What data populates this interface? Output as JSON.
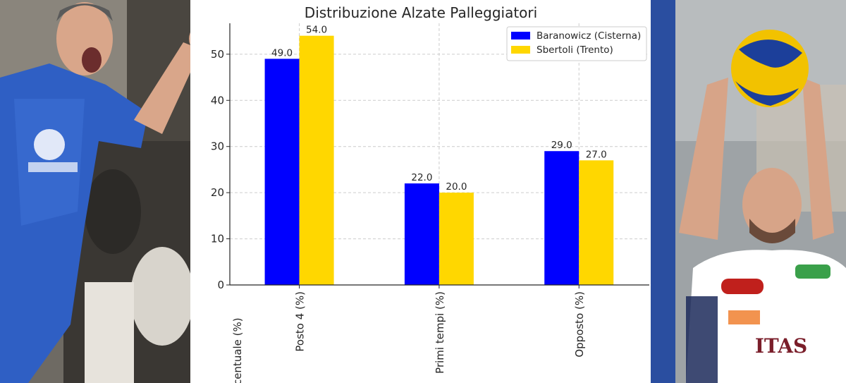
{
  "colors": {
    "series_1": "#0000ff",
    "series_2": "#ffd700",
    "gridline": "#cccccc",
    "left_jersey": "#2f5fc4",
    "right_jersey": "#ffffff",
    "ball_yellow": "#f2c200",
    "ball_blue": "#1c3f9a"
  },
  "images": {
    "left": "player-celebrating-photo",
    "right": "player-setting-ball-photo"
  },
  "chart_data": {
    "type": "bar",
    "title": "Distribuzione Alzate Palleggiatori",
    "xlabel": "",
    "ylabel": "Percentuale (%)",
    "categories": [
      "Posto 4 (%)",
      "Primi tempi (%)",
      "Opposto (%)"
    ],
    "series": [
      {
        "name": "Baranowicz (Cisterna)",
        "values": [
          49.0,
          22.0,
          29.0
        ],
        "labels": [
          "49.0",
          "22.0",
          "29.0"
        ]
      },
      {
        "name": "Sbertoli (Trento)",
        "values": [
          54.0,
          20.0,
          27.0
        ],
        "labels": [
          "54.0",
          "20.0",
          "27.0"
        ]
      }
    ],
    "ylim": [
      0,
      56.7
    ],
    "yticks": [
      "0",
      "10",
      "20",
      "30",
      "40",
      "50"
    ],
    "grid": true,
    "grid_style": "dashed",
    "legend_position": "top-right"
  }
}
